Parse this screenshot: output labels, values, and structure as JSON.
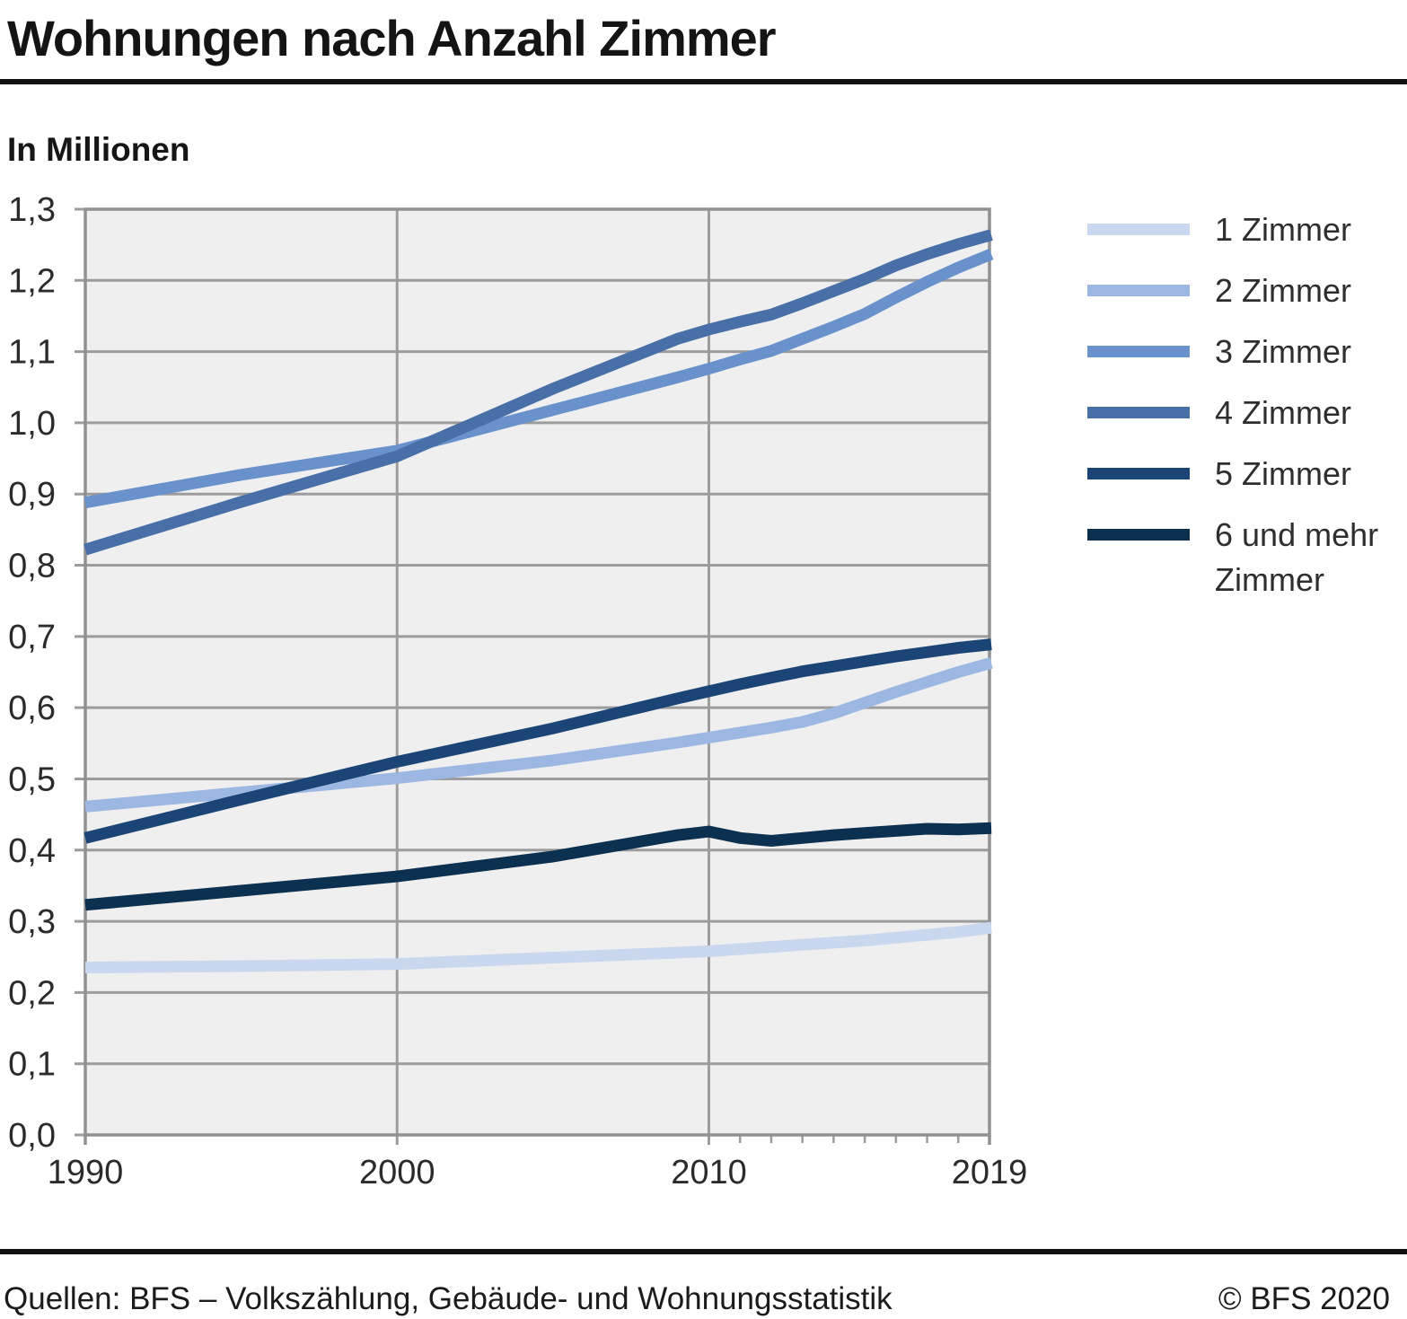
{
  "title": "Wohnungen nach Anzahl Zimmer",
  "subtitle": "In Millionen",
  "footer": {
    "source": "Quellen: BFS – Volkszählung, Gebäude- und Wohnungsstatistik",
    "copyright": "© BFS 2020"
  },
  "colors": {
    "plot_background": "#efefef",
    "gridline": "#9c9c9c",
    "plot_border": "#919191",
    "tick_text": "#2b2b2b",
    "rule": "#111111"
  },
  "chart_data": {
    "type": "line",
    "title": "Wohnungen nach Anzahl Zimmer",
    "unit_label": "In Millionen",
    "grid": true,
    "legend_position": "right",
    "xlim": [
      1990,
      2019
    ],
    "ylim": [
      0,
      1.3
    ],
    "x": [
      1990,
      1995,
      2000,
      2005,
      2009,
      2010,
      2011,
      2012,
      2013,
      2014,
      2015,
      2016,
      2017,
      2018,
      2019
    ],
    "x_ticks": {
      "values": [
        1990,
        2000,
        2010,
        2019
      ],
      "labels": [
        "1990",
        "2000",
        "2010",
        "2019"
      ]
    },
    "x_gridlines": [
      2000,
      2010
    ],
    "x_minor_ticks": [
      2011,
      2012,
      2013,
      2014,
      2015,
      2016,
      2017,
      2018
    ],
    "y_ticks": {
      "values": [
        0,
        0.1,
        0.2,
        0.3,
        0.4,
        0.5,
        0.6,
        0.7,
        0.8,
        0.9,
        1.0,
        1.1,
        1.2,
        1.3
      ],
      "labels": [
        "0,0",
        "0,1",
        "0,2",
        "0,3",
        "0,4",
        "0,5",
        "0,6",
        "0,7",
        "0,8",
        "0,9",
        "1,0",
        "1,1",
        "1,2",
        "1,3"
      ]
    },
    "series": [
      {
        "name": "1 Zimmer",
        "color": "#c9d7ef",
        "values": [
          0.235,
          0.237,
          0.24,
          0.249,
          0.256,
          0.258,
          0.261,
          0.264,
          0.267,
          0.27,
          0.273,
          0.277,
          0.281,
          0.285,
          0.291
        ]
      },
      {
        "name": "2 Zimmer",
        "color": "#9cb8e2",
        "values": [
          0.461,
          0.481,
          0.501,
          0.526,
          0.551,
          0.558,
          0.565,
          0.572,
          0.58,
          0.592,
          0.607,
          0.622,
          0.636,
          0.65,
          0.663
        ]
      },
      {
        "name": "3 Zimmer",
        "color": "#6992cc",
        "values": [
          0.888,
          0.927,
          0.961,
          1.018,
          1.064,
          1.076,
          1.089,
          1.101,
          1.118,
          1.135,
          1.153,
          1.176,
          1.198,
          1.218,
          1.237
        ]
      },
      {
        "name": "4 Zimmer",
        "color": "#486fa8",
        "values": [
          0.822,
          0.889,
          0.953,
          1.048,
          1.118,
          1.131,
          1.142,
          1.152,
          1.168,
          1.185,
          1.202,
          1.221,
          1.237,
          1.251,
          1.264
        ]
      },
      {
        "name": "5 Zimmer",
        "color": "#1c4577",
        "values": [
          0.417,
          0.471,
          0.524,
          0.571,
          0.613,
          0.623,
          0.633,
          0.642,
          0.651,
          0.658,
          0.665,
          0.672,
          0.678,
          0.684,
          0.689
        ]
      },
      {
        "name": "6 und mehr Zimmer",
        "color": "#0c3050",
        "values": [
          0.323,
          0.343,
          0.363,
          0.391,
          0.421,
          0.426,
          0.417,
          0.413,
          0.417,
          0.421,
          0.424,
          0.427,
          0.43,
          0.429,
          0.431
        ]
      }
    ]
  }
}
